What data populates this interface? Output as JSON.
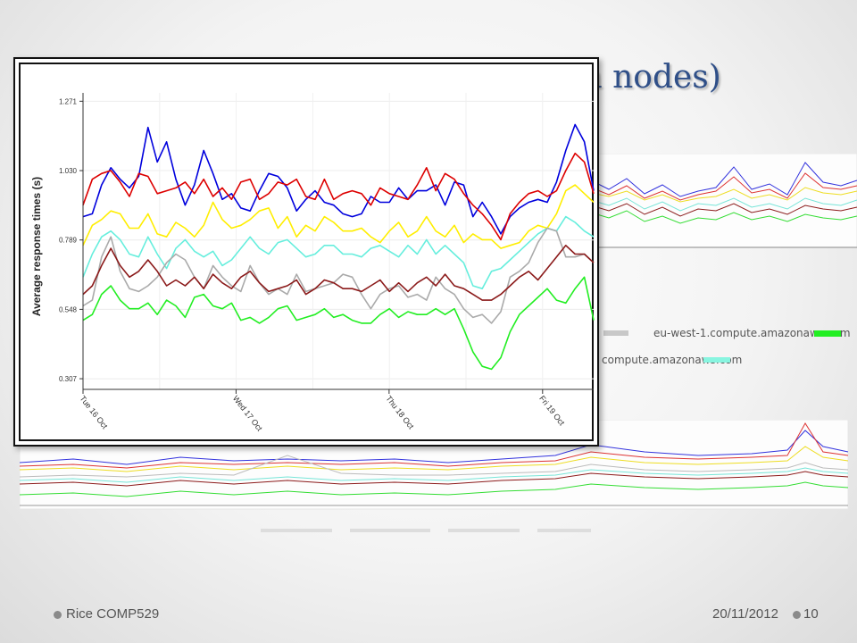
{
  "slide": {
    "title": "an nodes)",
    "footer_left": "Rice COMP529",
    "footer_date": "20/11/2012",
    "page_number": "10"
  },
  "legend": {
    "entry_1": "eu-west-1.compute.amazonaws.com",
    "entry_2": "compute.amazonaws.com",
    "entry_1_color": "#22ee22",
    "entry_2_color": "#88f5e0"
  },
  "chart_data": {
    "type": "line",
    "ylabel": "Average response times (s)",
    "xlabel": "",
    "yticks": [
      "1.271",
      "1.030",
      "0.789",
      "0.548",
      "0.307"
    ],
    "ylim": [
      0.27,
      1.3
    ],
    "xlim": [
      0,
      100
    ],
    "xticks": [
      {
        "x": 0,
        "label": "Tue 16 Oct"
      },
      {
        "x": 33.3,
        "label": "Wed 17 Oct"
      },
      {
        "x": 66.6,
        "label": "Thu 18 Oct"
      },
      {
        "x": 100,
        "label": "Fri 19 Oct"
      }
    ],
    "grid": true,
    "legend": "none",
    "series": [
      {
        "color": "#0000dd",
        "values": [
          0.87,
          0.88,
          0.98,
          1.04,
          1.0,
          0.97,
          1.01,
          1.18,
          1.06,
          1.13,
          1.0,
          0.91,
          0.98,
          1.1,
          1.02,
          0.93,
          0.95,
          0.9,
          0.89,
          0.96,
          1.02,
          1.01,
          0.97,
          0.89,
          0.93,
          0.96,
          0.92,
          0.91,
          0.88,
          0.87,
          0.88,
          0.94,
          0.92,
          0.92,
          0.97,
          0.93,
          0.96,
          0.96,
          0.98,
          0.91,
          0.99,
          0.98,
          0.87,
          0.92,
          0.87,
          0.81,
          0.87,
          0.9,
          0.92,
          0.93,
          0.92,
          0.99,
          1.1,
          1.19,
          1.13,
          0.96
        ]
      },
      {
        "color": "#dd0000",
        "values": [
          0.91,
          1.0,
          1.02,
          1.03,
          0.99,
          0.94,
          1.02,
          1.01,
          0.95,
          0.96,
          0.97,
          0.99,
          0.95,
          1.0,
          0.94,
          0.97,
          0.93,
          0.99,
          1.0,
          0.93,
          0.95,
          0.99,
          0.98,
          1.0,
          0.94,
          0.93,
          1.0,
          0.93,
          0.95,
          0.96,
          0.95,
          0.91,
          0.97,
          0.95,
          0.94,
          0.93,
          0.98,
          1.04,
          0.96,
          1.02,
          1.0,
          0.95,
          0.91,
          0.88,
          0.84,
          0.79,
          0.88,
          0.92,
          0.95,
          0.96,
          0.94,
          0.96,
          1.03,
          1.09,
          1.06,
          0.95
        ]
      },
      {
        "color": "#ffee00",
        "values": [
          0.77,
          0.84,
          0.86,
          0.89,
          0.88,
          0.83,
          0.83,
          0.88,
          0.81,
          0.8,
          0.85,
          0.83,
          0.8,
          0.84,
          0.92,
          0.86,
          0.83,
          0.84,
          0.86,
          0.89,
          0.9,
          0.83,
          0.87,
          0.8,
          0.84,
          0.82,
          0.87,
          0.85,
          0.82,
          0.82,
          0.83,
          0.8,
          0.78,
          0.82,
          0.85,
          0.8,
          0.82,
          0.87,
          0.82,
          0.8,
          0.84,
          0.78,
          0.81,
          0.79,
          0.79,
          0.76,
          0.77,
          0.78,
          0.82,
          0.84,
          0.83,
          0.88,
          0.96,
          0.98,
          0.95,
          0.92
        ]
      },
      {
        "color": "#66eedd",
        "values": [
          0.66,
          0.74,
          0.8,
          0.82,
          0.79,
          0.74,
          0.73,
          0.8,
          0.74,
          0.69,
          0.76,
          0.79,
          0.75,
          0.73,
          0.75,
          0.7,
          0.72,
          0.76,
          0.8,
          0.76,
          0.74,
          0.78,
          0.79,
          0.76,
          0.73,
          0.74,
          0.77,
          0.77,
          0.74,
          0.74,
          0.73,
          0.76,
          0.77,
          0.75,
          0.73,
          0.77,
          0.74,
          0.79,
          0.74,
          0.77,
          0.74,
          0.71,
          0.63,
          0.62,
          0.68,
          0.69,
          0.72,
          0.75,
          0.78,
          0.81,
          0.83,
          0.82,
          0.87,
          0.85,
          0.82,
          0.8
        ]
      },
      {
        "color": "#aaaaaa",
        "values": [
          0.56,
          0.58,
          0.73,
          0.8,
          0.68,
          0.62,
          0.61,
          0.63,
          0.66,
          0.71,
          0.74,
          0.72,
          0.66,
          0.62,
          0.7,
          0.66,
          0.63,
          0.61,
          0.7,
          0.64,
          0.6,
          0.62,
          0.6,
          0.67,
          0.61,
          0.62,
          0.63,
          0.64,
          0.67,
          0.66,
          0.6,
          0.55,
          0.6,
          0.62,
          0.63,
          0.59,
          0.6,
          0.58,
          0.66,
          0.62,
          0.6,
          0.55,
          0.52,
          0.53,
          0.5,
          0.54,
          0.66,
          0.68,
          0.71,
          0.78,
          0.83,
          0.82,
          0.73,
          0.73,
          0.74,
          0.71
        ]
      },
      {
        "color": "#8b1a1a",
        "values": [
          0.6,
          0.63,
          0.7,
          0.76,
          0.7,
          0.66,
          0.68,
          0.72,
          0.68,
          0.63,
          0.65,
          0.63,
          0.66,
          0.62,
          0.67,
          0.64,
          0.62,
          0.66,
          0.68,
          0.64,
          0.61,
          0.62,
          0.63,
          0.65,
          0.6,
          0.62,
          0.65,
          0.64,
          0.62,
          0.62,
          0.61,
          0.63,
          0.65,
          0.61,
          0.64,
          0.61,
          0.64,
          0.66,
          0.63,
          0.67,
          0.63,
          0.62,
          0.6,
          0.58,
          0.58,
          0.6,
          0.63,
          0.66,
          0.68,
          0.65,
          0.69,
          0.73,
          0.77,
          0.74,
          0.74,
          0.71
        ]
      },
      {
        "color": "#22ee22",
        "values": [
          0.51,
          0.53,
          0.6,
          0.63,
          0.58,
          0.55,
          0.55,
          0.57,
          0.53,
          0.58,
          0.56,
          0.52,
          0.59,
          0.6,
          0.56,
          0.55,
          0.57,
          0.51,
          0.52,
          0.5,
          0.52,
          0.55,
          0.56,
          0.51,
          0.52,
          0.53,
          0.55,
          0.52,
          0.53,
          0.51,
          0.5,
          0.5,
          0.53,
          0.55,
          0.52,
          0.54,
          0.53,
          0.53,
          0.55,
          0.53,
          0.55,
          0.48,
          0.4,
          0.35,
          0.34,
          0.38,
          0.47,
          0.53,
          0.56,
          0.59,
          0.62,
          0.58,
          0.57,
          0.62,
          0.66,
          0.51
        ]
      }
    ]
  }
}
